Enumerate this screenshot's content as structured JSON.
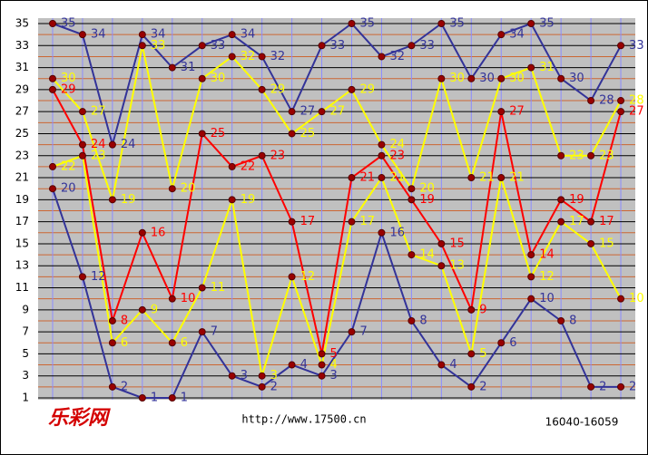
{
  "chart_data": {
    "type": "line",
    "ylim": [
      1,
      35
    ],
    "yticks": [
      35,
      33,
      31,
      29,
      27,
      25,
      23,
      21,
      19,
      17,
      15,
      13,
      11,
      9,
      7,
      5,
      3,
      1
    ],
    "grid": true,
    "series": [
      {
        "color": "#333399",
        "values": [
          35,
          34,
          24,
          34,
          31,
          33,
          34,
          32,
          27,
          33,
          35,
          32,
          33,
          35,
          30,
          34,
          35,
          30,
          28,
          33
        ]
      },
      {
        "color": "#ffff00",
        "values": [
          30,
          27,
          19,
          33,
          20,
          30,
          32,
          29,
          25,
          27,
          29,
          24,
          20,
          30,
          21,
          30,
          31,
          23,
          23,
          28
        ]
      },
      {
        "color": "#ff0000",
        "values": [
          29,
          24,
          8,
          16,
          10,
          25,
          22,
          23,
          17,
          5,
          21,
          23,
          19,
          15,
          9,
          27,
          14,
          19,
          17,
          27
        ]
      },
      {
        "color": "#ffff00",
        "values": [
          22,
          23,
          6,
          9,
          6,
          11,
          19,
          3,
          12,
          4,
          17,
          21,
          14,
          13,
          5,
          21,
          12,
          17,
          15,
          10
        ]
      },
      {
        "color": "#333399",
        "values": [
          20,
          12,
          2,
          1,
          1,
          7,
          3,
          2,
          4,
          3,
          7,
          16,
          8,
          4,
          2,
          6,
          10,
          8,
          2,
          2
        ]
      }
    ],
    "logo": "乐彩网",
    "url": "http://www.17500.cn",
    "period": "16040-16059"
  }
}
